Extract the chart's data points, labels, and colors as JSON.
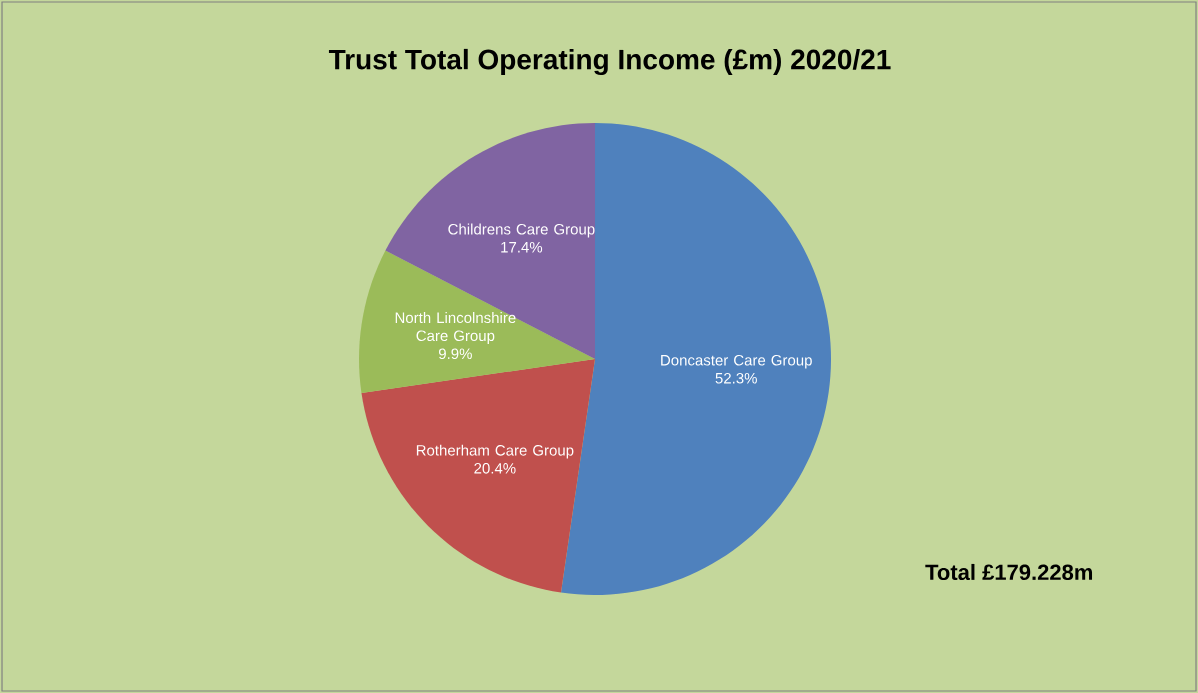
{
  "chart_data": {
    "type": "pie",
    "title": "Trust Total Operating Income (£m) 2020/21",
    "categories": [
      "Doncaster Care Group",
      "Rotherham Care Group",
      "North Lincolnshire Care Group",
      "Childrens Care Group"
    ],
    "values": [
      52.3,
      20.4,
      9.9,
      17.4
    ],
    "colors": [
      "#4f81bd",
      "#c0504d",
      "#9bbb59",
      "#8064a2"
    ],
    "value_labels": [
      "52.3%",
      "20.4%",
      "9.9%",
      "17.4%"
    ],
    "annotations": [
      "Total £179.228m"
    ]
  }
}
